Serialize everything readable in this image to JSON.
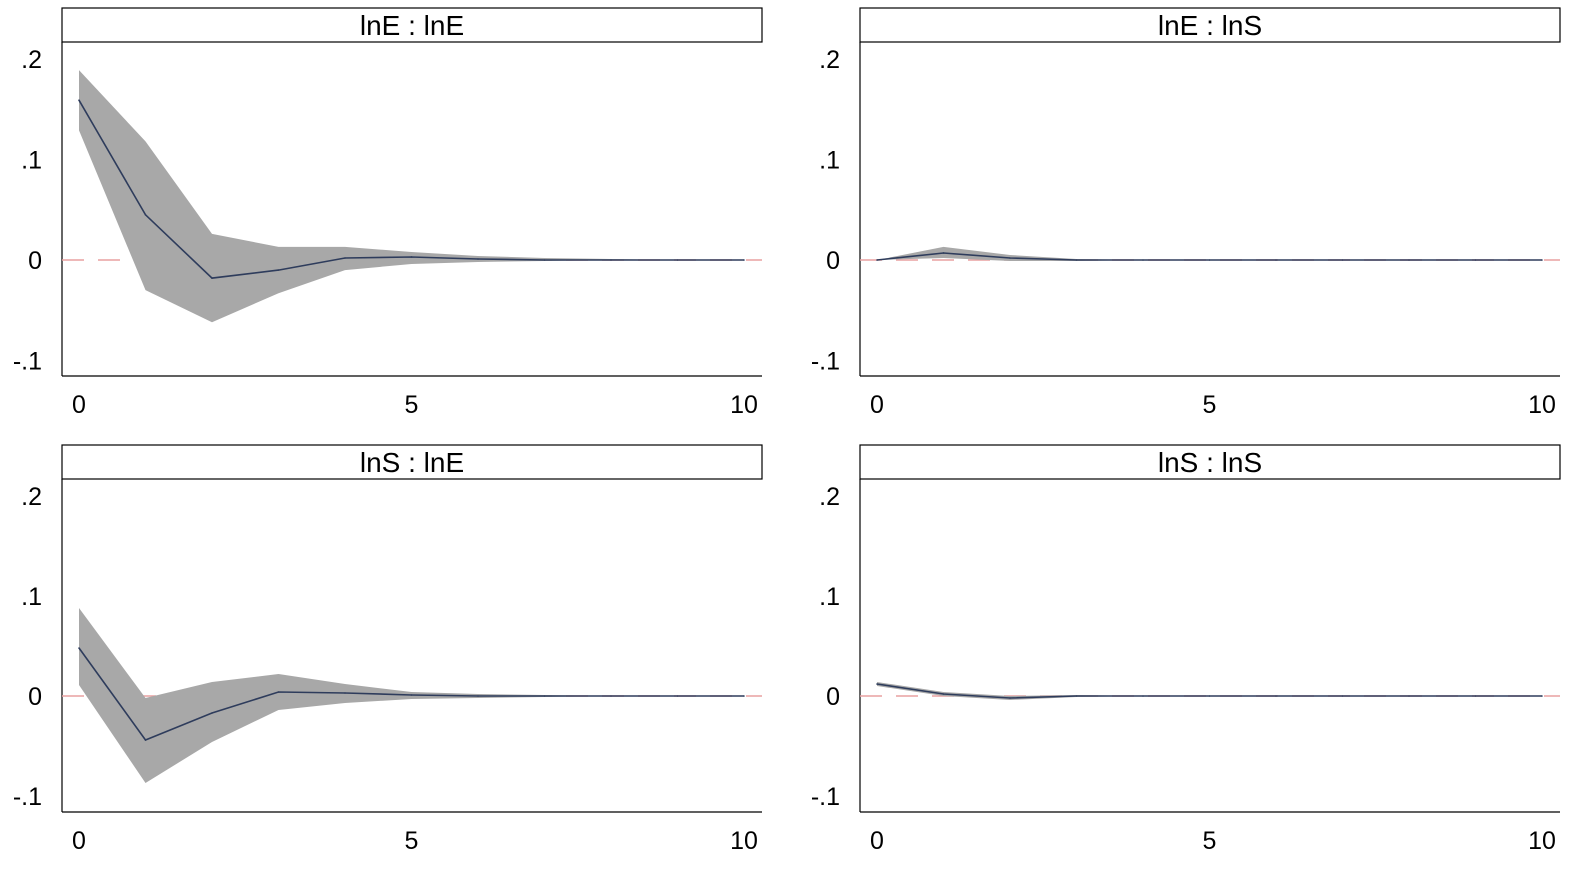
{
  "chart_data": [
    {
      "type": "line",
      "title": "lnE : lnE",
      "x": [
        0,
        1,
        2,
        3,
        4,
        5,
        6,
        7,
        8,
        9,
        10
      ],
      "series": [
        {
          "values": [
            0.159,
            0.045,
            -0.018,
            -0.01,
            0.002,
            0.003,
            0.001,
            0.0,
            0.0,
            0.0,
            0.0
          ]
        },
        {
          "values": [
            0.189,
            0.118,
            0.026,
            0.013,
            0.013,
            0.008,
            0.004,
            0.002,
            0.001,
            0.0,
            0.0
          ]
        },
        {
          "values": [
            0.129,
            -0.03,
            -0.062,
            -0.033,
            -0.01,
            -0.004,
            -0.002,
            -0.001,
            0.0,
            0.0,
            0.0
          ]
        }
      ],
      "xticks": [
        "0",
        "5",
        "10"
      ],
      "yticks": [
        "-.1",
        "0",
        ".1",
        ".2"
      ],
      "xlim": [
        0,
        10
      ],
      "ylim": [
        -0.115,
        0.22
      ]
    },
    {
      "type": "line",
      "title": "lnE : lnS",
      "x": [
        0,
        1,
        2,
        3,
        4,
        5,
        6,
        7,
        8,
        9,
        10
      ],
      "series": [
        {
          "values": [
            0.0,
            0.007,
            0.002,
            0.0,
            0.0,
            0.0,
            0.0,
            0.0,
            0.0,
            0.0,
            0.0
          ]
        },
        {
          "values": [
            0.0,
            0.013,
            0.005,
            0.001,
            0.0,
            0.0,
            0.0,
            0.0,
            0.0,
            0.0,
            0.0
          ]
        },
        {
          "values": [
            0.0,
            0.002,
            -0.001,
            -0.001,
            0.0,
            0.0,
            0.0,
            0.0,
            0.0,
            0.0,
            0.0
          ]
        }
      ],
      "xticks": [
        "0",
        "5",
        "10"
      ],
      "yticks": [
        "-.1",
        "0",
        ".1",
        ".2"
      ],
      "xlim": [
        0,
        10
      ],
      "ylim": [
        -0.115,
        0.22
      ]
    },
    {
      "type": "line",
      "title": "lnS : lnE",
      "x": [
        0,
        1,
        2,
        3,
        4,
        5,
        6,
        7,
        8,
        9,
        10
      ],
      "series": [
        {
          "values": [
            0.048,
            -0.044,
            -0.017,
            0.004,
            0.003,
            0.001,
            0.0,
            0.0,
            0.0,
            0.0,
            0.0
          ]
        },
        {
          "values": [
            0.088,
            -0.002,
            0.014,
            0.022,
            0.012,
            0.004,
            0.002,
            0.001,
            0.0,
            0.0,
            0.0
          ]
        },
        {
          "values": [
            0.011,
            -0.087,
            -0.046,
            -0.014,
            -0.007,
            -0.003,
            -0.002,
            -0.001,
            0.0,
            0.0,
            0.0
          ]
        }
      ],
      "xticks": [
        "0",
        "5",
        "10"
      ],
      "yticks": [
        "-.1",
        "0",
        ".1",
        ".2"
      ],
      "xlim": [
        0,
        10
      ],
      "ylim": [
        -0.115,
        0.22
      ]
    },
    {
      "type": "line",
      "title": "lnS : lnS",
      "x": [
        0,
        1,
        2,
        3,
        4,
        5,
        6,
        7,
        8,
        9,
        10
      ],
      "series": [
        {
          "values": [
            0.012,
            0.002,
            -0.002,
            0.0,
            0.0,
            0.0,
            0.0,
            0.0,
            0.0,
            0.0,
            0.0
          ]
        },
        {
          "values": [
            0.014,
            0.004,
            0.0,
            0.001,
            0.0,
            0.0,
            0.0,
            0.0,
            0.0,
            0.0,
            0.0
          ]
        },
        {
          "values": [
            0.01,
            0.0,
            -0.004,
            -0.001,
            0.0,
            0.0,
            0.0,
            0.0,
            0.0,
            0.0,
            0.0
          ]
        }
      ],
      "xticks": [
        "0",
        "5",
        "10"
      ],
      "yticks": [
        "-.1",
        "0",
        ".1",
        ".2"
      ],
      "xlim": [
        0,
        10
      ],
      "ylim": [
        -0.115,
        0.22
      ]
    }
  ],
  "colors": {
    "band": "#a8a8a8",
    "line": "#2e3c5c",
    "zero_line": "#e8a0a0",
    "axis": "#000000",
    "text": "#000000"
  }
}
